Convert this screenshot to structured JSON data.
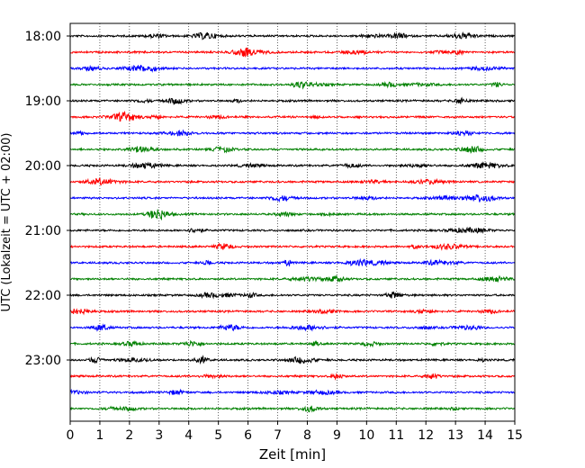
{
  "chart_data": {
    "type": "line",
    "title": "",
    "xlabel": "Zeit  [min]",
    "ylabel": "UTC (Lokalzeit = UTC + 02:00)",
    "xlim": [
      0,
      15
    ],
    "x_ticks": [
      0,
      1,
      2,
      3,
      4,
      5,
      6,
      7,
      8,
      9,
      10,
      11,
      12,
      13,
      14,
      15
    ],
    "vertical_grid": "dotted",
    "row_interval_min": 15,
    "start_time": "18:00",
    "y_tick_labels": [
      "18:00",
      "19:00",
      "20:00",
      "21:00",
      "22:00",
      "23:00"
    ],
    "trace_colors": [
      "#000000",
      "#ff0000",
      "#0000ff",
      "#008000"
    ],
    "traces": [
      {
        "start": "18:00",
        "color": "#000000"
      },
      {
        "start": "18:15",
        "color": "#ff0000"
      },
      {
        "start": "18:30",
        "color": "#0000ff"
      },
      {
        "start": "18:45",
        "color": "#008000"
      },
      {
        "start": "19:00",
        "color": "#000000"
      },
      {
        "start": "19:15",
        "color": "#ff0000"
      },
      {
        "start": "19:30",
        "color": "#0000ff"
      },
      {
        "start": "19:45",
        "color": "#008000"
      },
      {
        "start": "20:00",
        "color": "#000000"
      },
      {
        "start": "20:15",
        "color": "#ff0000"
      },
      {
        "start": "20:30",
        "color": "#0000ff"
      },
      {
        "start": "20:45",
        "color": "#008000"
      },
      {
        "start": "21:00",
        "color": "#000000"
      },
      {
        "start": "21:15",
        "color": "#ff0000"
      },
      {
        "start": "21:30",
        "color": "#0000ff"
      },
      {
        "start": "21:45",
        "color": "#008000"
      },
      {
        "start": "22:00",
        "color": "#000000"
      },
      {
        "start": "22:15",
        "color": "#ff0000"
      },
      {
        "start": "22:30",
        "color": "#0000ff"
      },
      {
        "start": "22:45",
        "color": "#008000"
      },
      {
        "start": "23:00",
        "color": "#000000"
      },
      {
        "start": "23:15",
        "color": "#ff0000"
      },
      {
        "start": "23:30",
        "color": "#0000ff"
      },
      {
        "start": "23:45",
        "color": "#008000"
      }
    ]
  }
}
